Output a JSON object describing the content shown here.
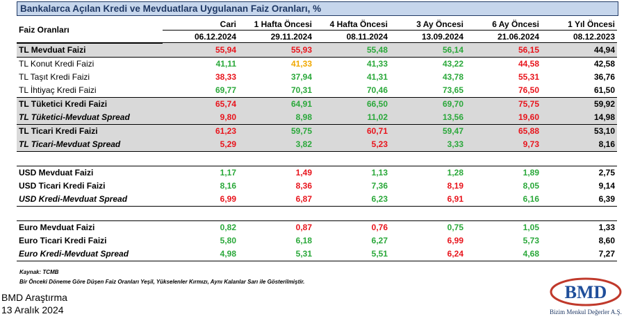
{
  "header": {
    "title": "Bankalarca Açılan Kredi ve Mevduatlara Uygulanan Faiz Oranları, %"
  },
  "table": {
    "label_header": "Faiz Oranları",
    "columns": [
      {
        "name": "Cari",
        "date": "06.12.2024"
      },
      {
        "name": "1 Hafta Öncesi",
        "date": "29.11.2024"
      },
      {
        "name": "4 Hafta Öncesi",
        "date": "08.11.2024"
      },
      {
        "name": "3 Ay Öncesi",
        "date": "13.09.2024"
      },
      {
        "name": "6 Ay Öncesi",
        "date": "21.06.2024"
      },
      {
        "name": "1 Yıl Öncesi",
        "date": "08.12.2023"
      }
    ],
    "groups": [
      [
        [
          {
            "label": "TL Mevduat Faizi",
            "style": "bold",
            "shaded": true,
            "values": [
              "55,94",
              "55,93",
              "55,48",
              "56,14",
              "56,15",
              "44,94"
            ],
            "colors": [
              "#e8141c",
              "#e8141c",
              "#2aa83a",
              "#2aa83a",
              "#e8141c",
              "#000000"
            ]
          }
        ],
        [
          {
            "label": "TL Konut Kredi Faizi",
            "style": "normal",
            "shaded": false,
            "values": [
              "41,11",
              "41,33",
              "41,33",
              "43,22",
              "44,58",
              "42,58"
            ],
            "colors": [
              "#2aa83a",
              "#f0a800",
              "#2aa83a",
              "#2aa83a",
              "#e8141c",
              "#000000"
            ]
          },
          {
            "label": "TL Taşıt Kredi Faizi",
            "style": "normal",
            "shaded": false,
            "values": [
              "38,33",
              "37,94",
              "41,31",
              "43,78",
              "55,31",
              "36,76"
            ],
            "colors": [
              "#e8141c",
              "#2aa83a",
              "#2aa83a",
              "#2aa83a",
              "#e8141c",
              "#000000"
            ]
          },
          {
            "label": "TL İhtiyaç Kredi Faizi",
            "style": "normal",
            "shaded": false,
            "values": [
              "69,77",
              "70,31",
              "70,46",
              "73,65",
              "76,50",
              "61,50"
            ],
            "colors": [
              "#2aa83a",
              "#2aa83a",
              "#2aa83a",
              "#2aa83a",
              "#e8141c",
              "#000000"
            ]
          }
        ],
        [
          {
            "label": "TL Tüketici Kredi Faizi",
            "style": "bold",
            "shaded": true,
            "values": [
              "65,74",
              "64,91",
              "66,50",
              "69,70",
              "75,75",
              "59,92"
            ],
            "colors": [
              "#e8141c",
              "#2aa83a",
              "#2aa83a",
              "#2aa83a",
              "#e8141c",
              "#000000"
            ]
          },
          {
            "label": "TL Tüketici-Mevduat Spread",
            "style": "bold-italic",
            "shaded": true,
            "values": [
              "9,80",
              "8,98",
              "11,02",
              "13,56",
              "19,60",
              "14,98"
            ],
            "colors": [
              "#e8141c",
              "#2aa83a",
              "#2aa83a",
              "#2aa83a",
              "#e8141c",
              "#000000"
            ]
          }
        ],
        [
          {
            "label": "TL Ticari Kredi Faizi",
            "style": "bold",
            "shaded": true,
            "values": [
              "61,23",
              "59,75",
              "60,71",
              "59,47",
              "65,88",
              "53,10"
            ],
            "colors": [
              "#e8141c",
              "#2aa83a",
              "#e8141c",
              "#2aa83a",
              "#e8141c",
              "#000000"
            ]
          },
          {
            "label": "TL Ticari-Mevduat Spread",
            "style": "bold-italic",
            "shaded": true,
            "values": [
              "5,29",
              "3,82",
              "5,23",
              "3,33",
              "9,73",
              "8,16"
            ],
            "colors": [
              "#e8141c",
              "#2aa83a",
              "#e8141c",
              "#2aa83a",
              "#e8141c",
              "#000000"
            ]
          }
        ]
      ],
      [
        [
          {
            "label": "USD Mevduat Faizi",
            "style": "bold",
            "shaded": false,
            "values": [
              "1,17",
              "1,49",
              "1,13",
              "1,28",
              "1,89",
              "2,75"
            ],
            "colors": [
              "#2aa83a",
              "#e8141c",
              "#2aa83a",
              "#2aa83a",
              "#2aa83a",
              "#000000"
            ]
          },
          {
            "label": "USD Ticari Kredi Faizi",
            "style": "bold",
            "shaded": false,
            "values": [
              "8,16",
              "8,36",
              "7,36",
              "8,19",
              "8,05",
              "9,14"
            ],
            "colors": [
              "#2aa83a",
              "#e8141c",
              "#2aa83a",
              "#e8141c",
              "#2aa83a",
              "#000000"
            ]
          },
          {
            "label": "USD Kredi-Mevduat Spread",
            "style": "bold-italic",
            "shaded": false,
            "values": [
              "6,99",
              "6,87",
              "6,23",
              "6,91",
              "6,16",
              "6,39"
            ],
            "colors": [
              "#e8141c",
              "#e8141c",
              "#2aa83a",
              "#e8141c",
              "#2aa83a",
              "#000000"
            ]
          }
        ]
      ],
      [
        [
          {
            "label": "Euro Mevduat Faizi",
            "style": "bold",
            "shaded": false,
            "values": [
              "0,82",
              "0,87",
              "0,76",
              "0,75",
              "1,05",
              "1,33"
            ],
            "colors": [
              "#2aa83a",
              "#e8141c",
              "#e8141c",
              "#2aa83a",
              "#2aa83a",
              "#000000"
            ]
          },
          {
            "label": "Euro Ticari Kredi Faizi",
            "style": "bold",
            "shaded": false,
            "values": [
              "5,80",
              "6,18",
              "6,27",
              "6,99",
              "5,73",
              "8,60"
            ],
            "colors": [
              "#2aa83a",
              "#2aa83a",
              "#2aa83a",
              "#e8141c",
              "#2aa83a",
              "#000000"
            ]
          },
          {
            "label": "Euro Kredi-Mevduat Spread",
            "style": "bold-italic",
            "shaded": false,
            "values": [
              "4,98",
              "5,31",
              "5,51",
              "6,24",
              "4,68",
              "7,27"
            ],
            "colors": [
              "#2aa83a",
              "#2aa83a",
              "#2aa83a",
              "#e8141c",
              "#2aa83a",
              "#000000"
            ]
          }
        ]
      ]
    ]
  },
  "footer": {
    "source": "Kaynak: TCMB",
    "note": "Bir Önceki Döneme Göre Düşen Faiz Oranları Yeşil, Yükselenler Kırmızı, Aynı Kalanlar Sarı ile Gösterilmiştir.",
    "org": "BMD Araştırma",
    "date": "13 Aralık 2024"
  },
  "logo": {
    "mark": "BMD",
    "name": "Bizim Menkul Değerler A.Ş."
  }
}
